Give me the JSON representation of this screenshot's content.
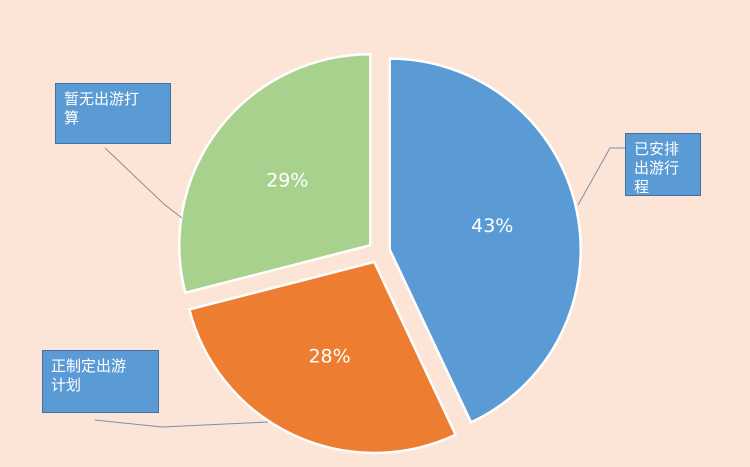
{
  "chart_data": {
    "type": "pie",
    "categories": [
      "已安排出游行程",
      "正制定出游计划",
      "暂无出游打算"
    ],
    "values": [
      43,
      28,
      29
    ],
    "value_labels": [
      "43%",
      "28%",
      "29%"
    ],
    "colors": [
      "#5b9bd5",
      "#ed7d31",
      "#a9d18e"
    ]
  }
}
